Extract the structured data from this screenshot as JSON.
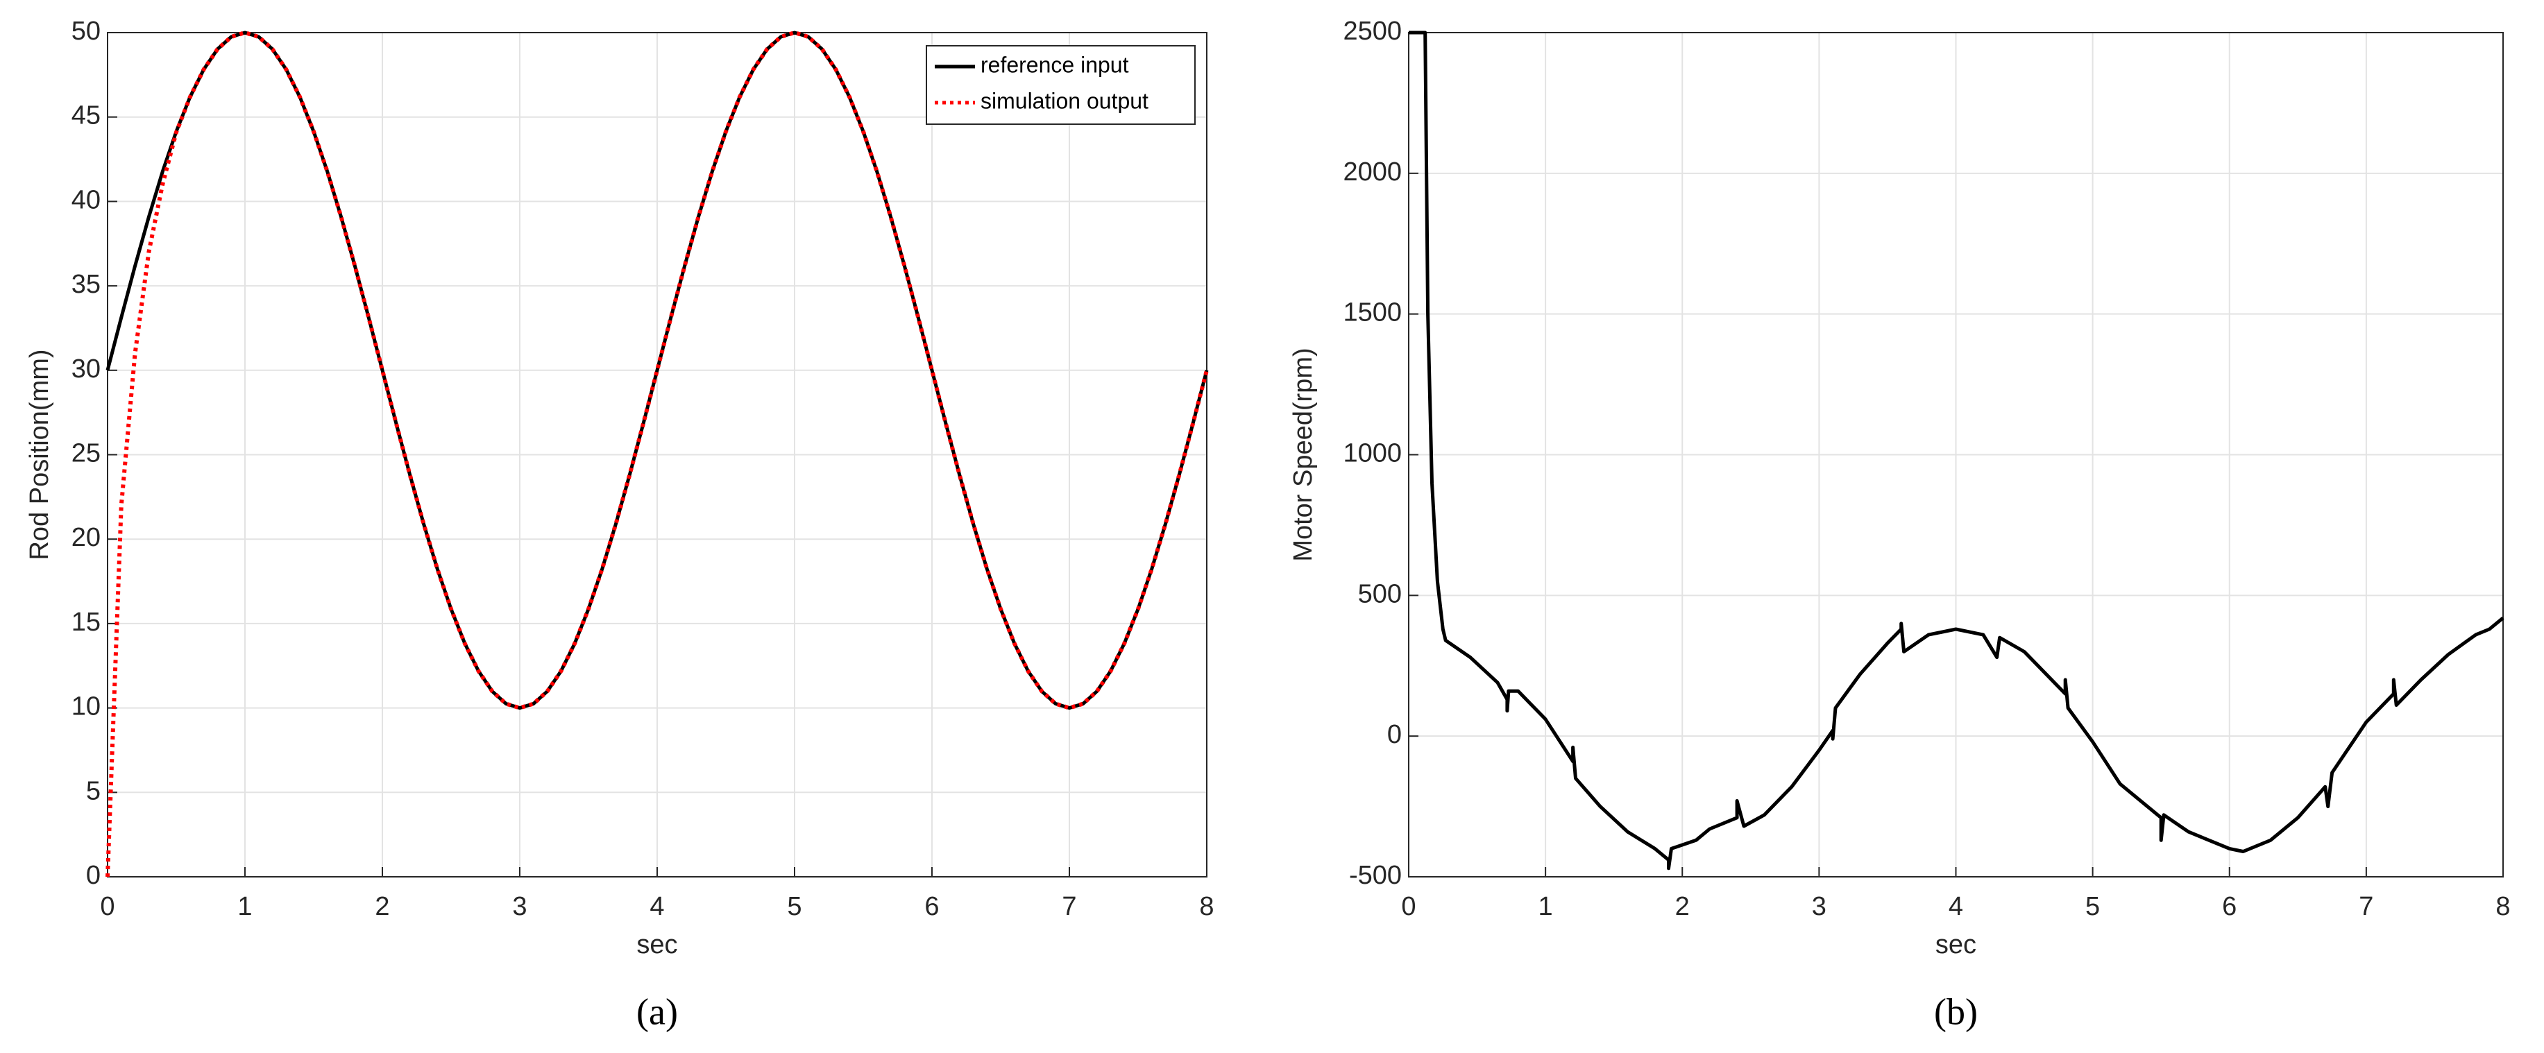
{
  "chart_data": [
    {
      "type": "line",
      "x_label": "sec",
      "y_label": "Rod Position(mm)",
      "caption": "(a)",
      "xlim": [
        0,
        8
      ],
      "ylim": [
        0,
        50
      ],
      "xticks": [
        0,
        1,
        2,
        3,
        4,
        5,
        6,
        7,
        8
      ],
      "yticks": [
        0,
        5,
        10,
        15,
        20,
        25,
        30,
        35,
        40,
        45,
        50
      ],
      "grid": true,
      "legend": "upper-right",
      "x": [
        0,
        0.1,
        0.2,
        0.3,
        0.4,
        0.5,
        0.6,
        0.7,
        0.8,
        0.9,
        1,
        1.1,
        1.2,
        1.3,
        1.4,
        1.5,
        1.6,
        1.7,
        1.8,
        1.9,
        2,
        2.1,
        2.2,
        2.3,
        2.4,
        2.5,
        2.6,
        2.7,
        2.8,
        2.9,
        3,
        3.1,
        3.2,
        3.3,
        3.4,
        3.5,
        3.6,
        3.7,
        3.8,
        3.9,
        4,
        4.1,
        4.2,
        4.3,
        4.4,
        4.5,
        4.6,
        4.7,
        4.8,
        4.9,
        5,
        5.1,
        5.2,
        5.3,
        5.4,
        5.5,
        5.6,
        5.7,
        5.8,
        5.9,
        6,
        6.1,
        6.2,
        6.3,
        6.4,
        6.5,
        6.6,
        6.7,
        6.8,
        6.9,
        7,
        7.1,
        7.2,
        7.3,
        7.4,
        7.5,
        7.6,
        7.7,
        7.8,
        7.9,
        8
      ],
      "series": [
        {
          "name": "reference input",
          "color": "#000000",
          "style": "solid",
          "values": [
            30,
            33.13,
            36.18,
            39.08,
            41.76,
            44.14,
            46.18,
            47.82,
            49.02,
            49.75,
            50,
            49.75,
            49.02,
            47.82,
            46.18,
            44.14,
            41.76,
            39.08,
            36.18,
            33.13,
            30,
            26.87,
            23.82,
            20.92,
            18.24,
            15.86,
            13.82,
            12.18,
            10.98,
            10.25,
            10,
            10.25,
            10.98,
            12.18,
            13.82,
            15.86,
            18.24,
            20.92,
            23.82,
            26.87,
            30,
            33.13,
            36.18,
            39.08,
            41.76,
            44.14,
            46.18,
            47.82,
            49.02,
            49.75,
            50,
            49.75,
            49.02,
            47.82,
            46.18,
            44.14,
            41.76,
            39.08,
            36.18,
            33.13,
            30,
            26.87,
            23.82,
            20.92,
            18.24,
            15.86,
            13.82,
            12.18,
            10.98,
            10.25,
            10,
            10.25,
            10.98,
            12.18,
            13.82,
            15.86,
            18.24,
            20.92,
            23.82,
            26.87,
            30
          ]
        },
        {
          "name": "simulation output",
          "color": "#ff0000",
          "style": "dotted",
          "values": [
            0,
            22,
            31,
            37,
            41,
            44.1,
            46.18,
            47.82,
            49.02,
            49.75,
            50,
            49.75,
            49.02,
            47.82,
            46.18,
            44.14,
            41.76,
            39.08,
            36.18,
            33.13,
            30,
            26.87,
            23.82,
            20.92,
            18.24,
            15.86,
            13.82,
            12.18,
            10.98,
            10.25,
            10,
            10.25,
            10.98,
            12.18,
            13.82,
            15.86,
            18.24,
            20.92,
            23.82,
            26.87,
            30,
            33.13,
            36.18,
            39.08,
            41.76,
            44.14,
            46.18,
            47.82,
            49.02,
            49.75,
            50,
            49.75,
            49.02,
            47.82,
            46.18,
            44.14,
            41.76,
            39.08,
            36.18,
            33.13,
            30,
            26.87,
            23.82,
            20.92,
            18.24,
            15.86,
            13.82,
            12.18,
            10.98,
            10.25,
            10,
            10.25,
            10.98,
            12.18,
            13.82,
            15.86,
            18.24,
            20.92,
            23.82,
            26.87,
            30
          ]
        }
      ]
    },
    {
      "type": "line",
      "x_label": "sec",
      "y_label": "Motor Speed(rpm)",
      "caption": "(b)",
      "xlim": [
        0,
        8
      ],
      "ylim": [
        -500,
        2500
      ],
      "xticks": [
        0,
        1,
        2,
        3,
        4,
        5,
        6,
        7,
        8
      ],
      "yticks": [
        -500,
        0,
        500,
        1000,
        1500,
        2000,
        2500
      ],
      "grid": true,
      "x": [
        0,
        0.12,
        0.14,
        0.17,
        0.21,
        0.25,
        0.27,
        0.45,
        0.65,
        0.72,
        0.72,
        0.73,
        0.8,
        1.0,
        1.2,
        1.2,
        1.22,
        1.4,
        1.6,
        1.8,
        1.9,
        1.9,
        1.92,
        2.1,
        2.2,
        2.4,
        2.4,
        2.45,
        2.6,
        2.8,
        3.0,
        3.1,
        3.1,
        3.12,
        3.3,
        3.5,
        3.6,
        3.6,
        3.62,
        3.8,
        4.0,
        4.2,
        4.3,
        4.32,
        4.5,
        4.8,
        4.8,
        4.82,
        5.0,
        5.2,
        5.5,
        5.5,
        5.52,
        5.7,
        5.9,
        6.0,
        6.1,
        6.3,
        6.5,
        6.7,
        6.72,
        6.75,
        7.0,
        7.2,
        7.2,
        7.22,
        7.4,
        7.6,
        7.8,
        7.9,
        8.0
      ],
      "series": [
        {
          "color": "#000000",
          "style": "solid",
          "values": [
            2500,
            2500,
            1500,
            900,
            550,
            380,
            340,
            280,
            190,
            130,
            90,
            160,
            160,
            60,
            -90,
            -40,
            -150,
            -250,
            -340,
            -400,
            -440,
            -470,
            -400,
            -370,
            -330,
            -290,
            -230,
            -320,
            -280,
            -180,
            -50,
            20,
            -10,
            100,
            220,
            330,
            380,
            400,
            300,
            360,
            380,
            360,
            280,
            350,
            300,
            150,
            200,
            100,
            -20,
            -170,
            -290,
            -370,
            -280,
            -340,
            -380,
            -400,
            -410,
            -370,
            -290,
            -180,
            -250,
            -130,
            50,
            150,
            200,
            110,
            200,
            290,
            360,
            380,
            420
          ]
        }
      ]
    }
  ]
}
